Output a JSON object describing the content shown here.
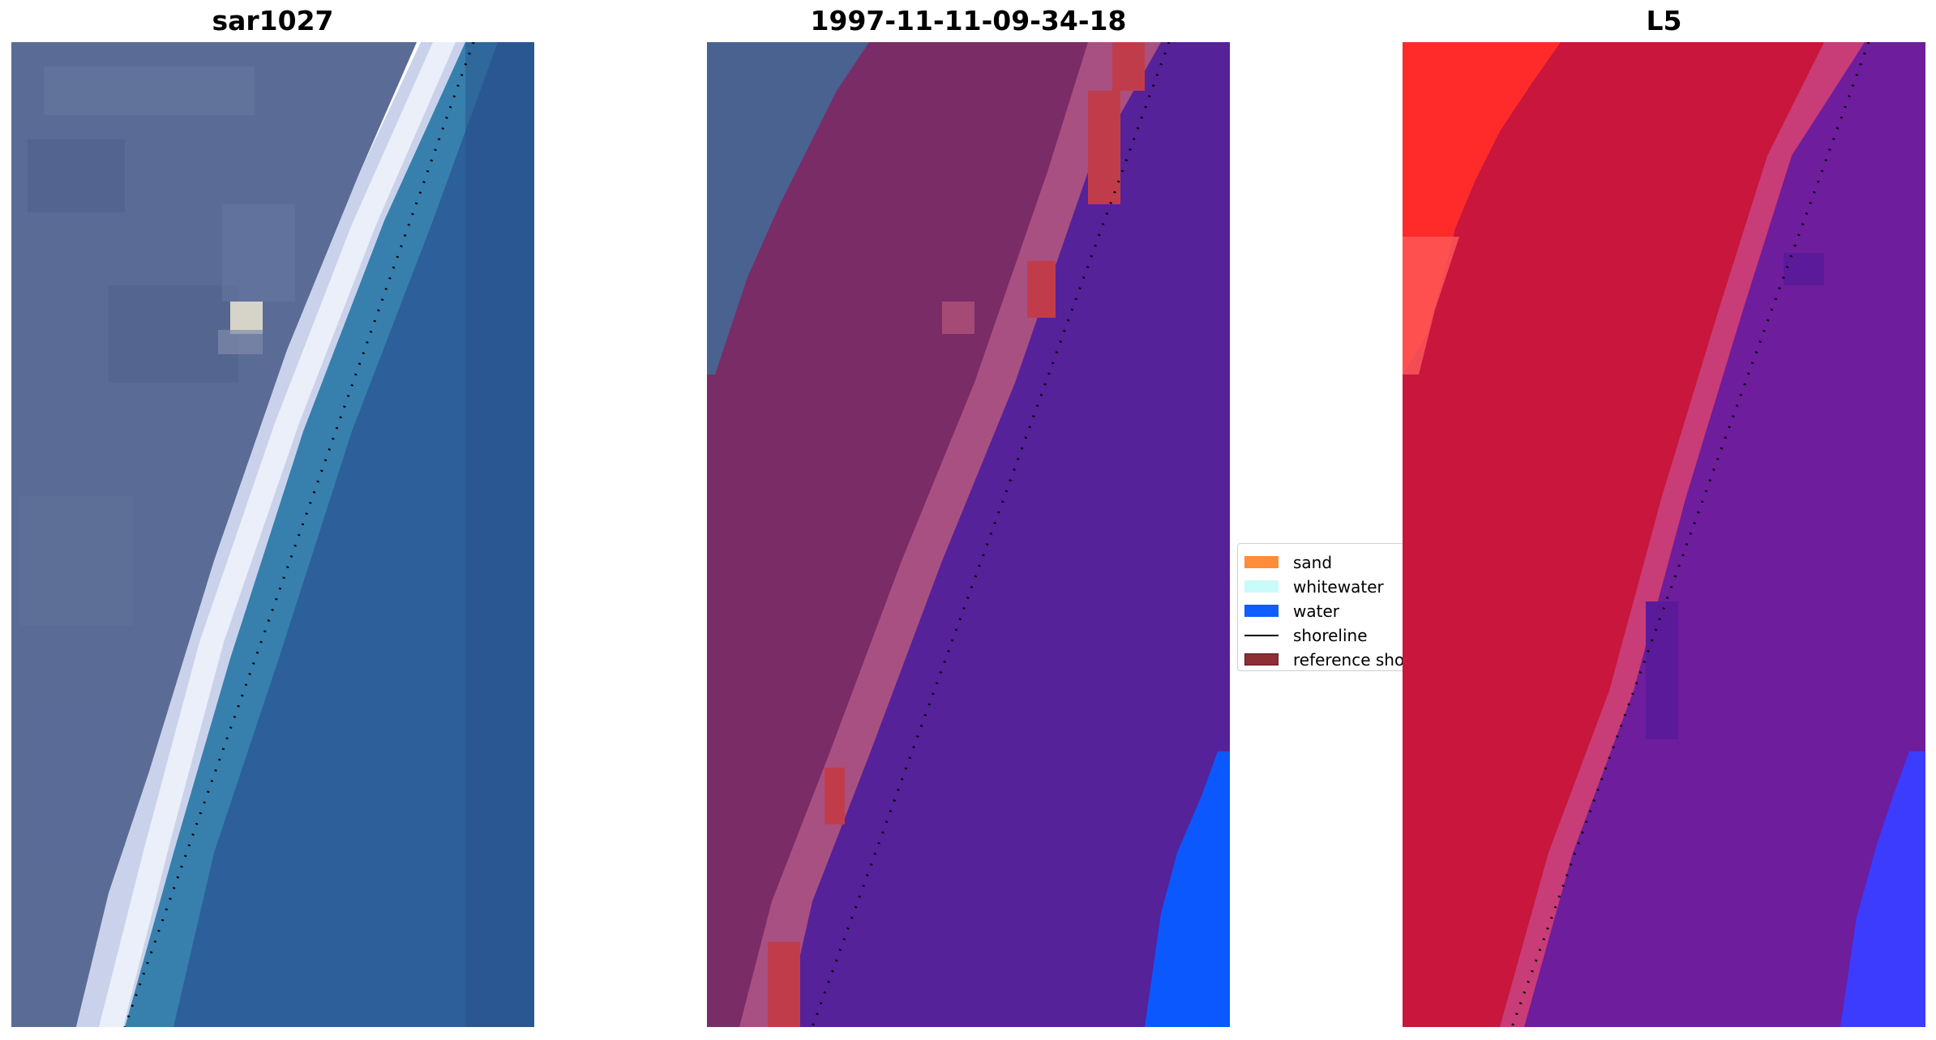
{
  "panels": [
    {
      "title": "sar1027"
    },
    {
      "title": "1997-11-11-09-34-18"
    },
    {
      "title": "L5"
    }
  ],
  "legend": {
    "items": [
      {
        "label": "sand",
        "color": "#ff8c3a",
        "kind": "patch"
      },
      {
        "label": "whitewater",
        "color": "#c9fbfa",
        "kind": "patch"
      },
      {
        "label": "water",
        "color": "#0f5cff",
        "kind": "patch"
      },
      {
        "label": "shoreline",
        "color": "#000000",
        "kind": "line"
      },
      {
        "label": "reference shoreline",
        "color": "#8e2e35",
        "kind": "patch"
      }
    ]
  },
  "colors": {
    "rgb_land": "#5a6c96",
    "rgb_sea": "#2a6aa0",
    "rgb_whitewater": "#dfe6f2",
    "class_land": "#7a2c66",
    "class_beach": "#a95082",
    "class_water": "#55229a",
    "class_sand_patch": "#c13c4a",
    "class_water_patch": "#0c58ff",
    "index_land": "#c8163c",
    "index_land_bright": "#ff2a2a",
    "index_water": "#6e1d9c",
    "index_water_blue": "#3c3cff",
    "shoreline_dots": "#000000"
  }
}
